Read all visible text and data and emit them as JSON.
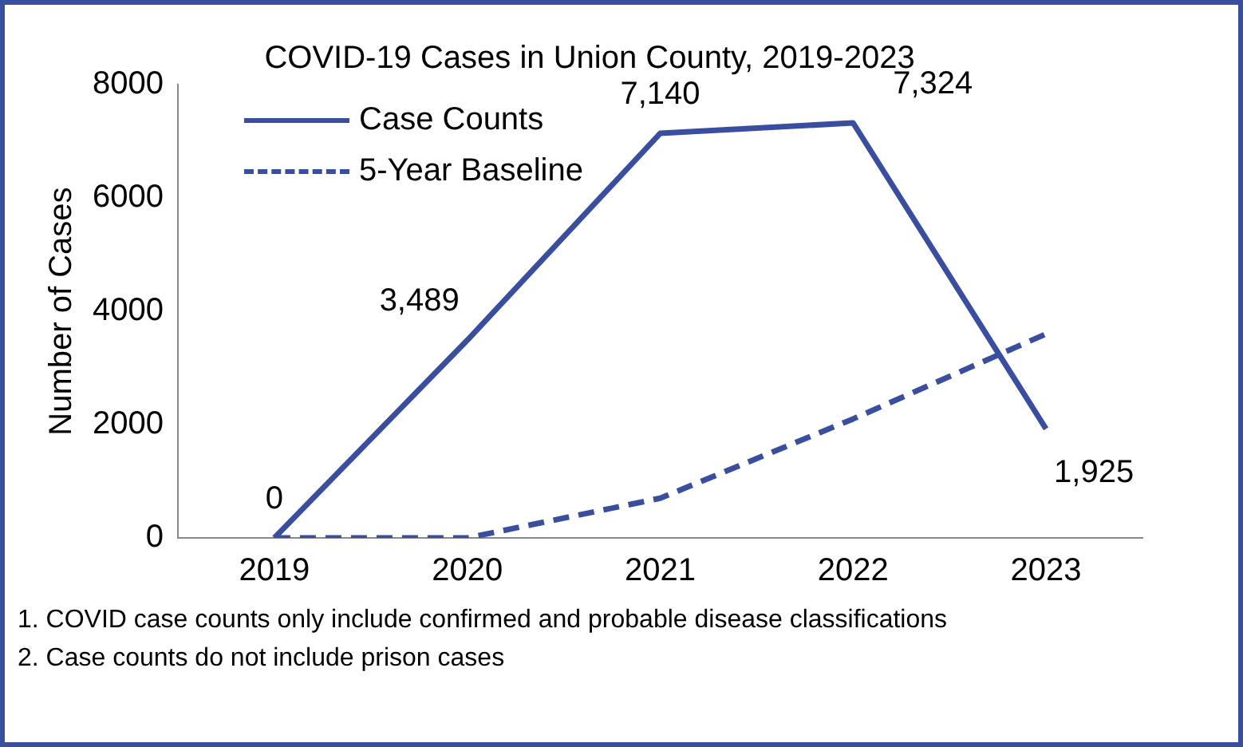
{
  "chart_data": {
    "type": "line",
    "title": "COVID-19 Cases in Union County, 2019-2023",
    "ylabel": "Number of Cases",
    "categories": [
      "2019",
      "2020",
      "2021",
      "2022",
      "2023"
    ],
    "series": [
      {
        "name": "Case Counts",
        "color": "#3a4ea0",
        "line_style": "solid",
        "values": [
          0,
          3489,
          7140,
          7324,
          1925
        ],
        "value_labels": [
          "0",
          "3,489",
          "7,140",
          "7,324",
          "1,925"
        ]
      },
      {
        "name": "5-Year Baseline",
        "color": "#3a4ea0",
        "line_style": "dashed",
        "values": [
          0,
          0,
          700,
          2100,
          3600
        ]
      }
    ],
    "ylim": [
      0,
      8000
    ],
    "yticks": [
      0,
      2000,
      4000,
      6000,
      8000
    ],
    "grid": false,
    "legend": "top left",
    "marker": "none",
    "annotations": [
      "1. COVID case counts only include confirmed and probable disease classifications",
      "2. Case counts do not include prison cases"
    ]
  }
}
